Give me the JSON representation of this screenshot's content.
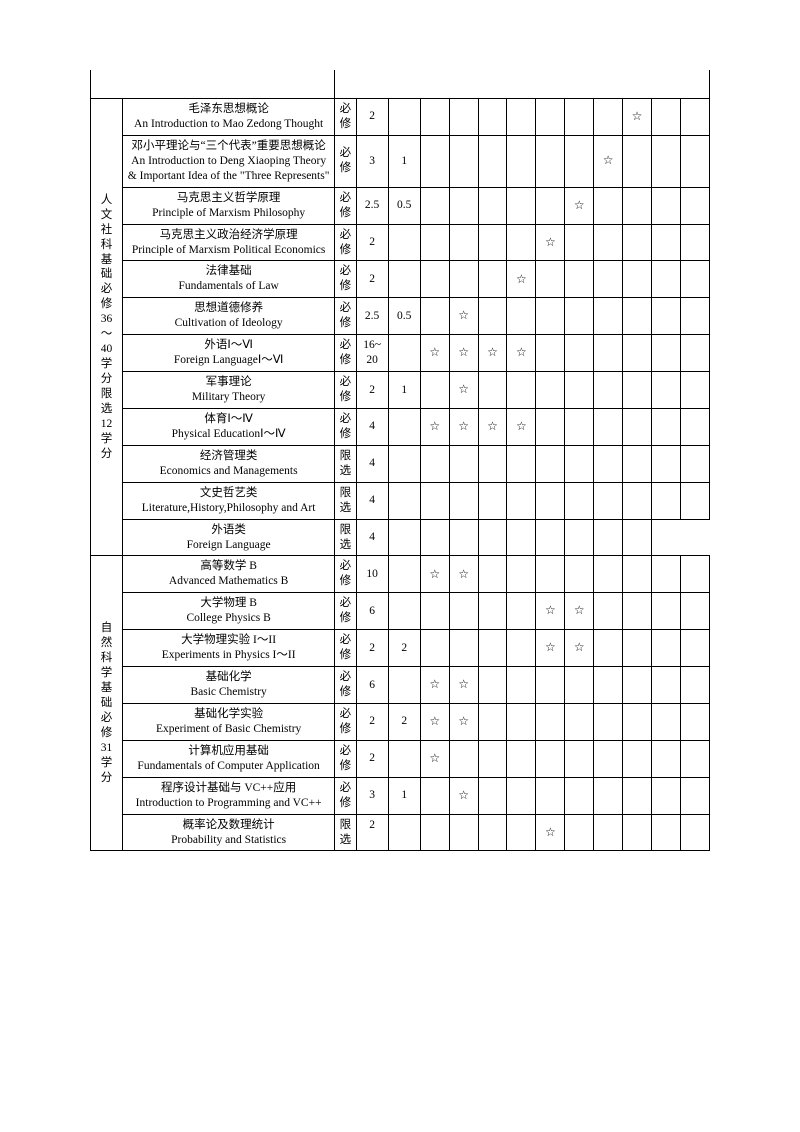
{
  "star": "☆",
  "categories": [
    {
      "label": "人文社科基础　必修36～40学分　限选12学分",
      "rowspan": 12
    },
    {
      "label": "自然科学基础　必修31学分",
      "rowspan": 8
    }
  ],
  "rows": [
    {
      "zh": "毛泽东思想概论",
      "en": "An Introduction to Mao Zedong Thought",
      "req": "必修",
      "credits": "2",
      "lab": "",
      "stars": [
        0,
        0,
        0,
        0,
        0,
        0,
        0,
        1,
        0,
        0
      ]
    },
    {
      "zh": "邓小平理论与“三个代表”重要思想概论",
      "en": "An Introduction to Deng Xiaoping Theory & Important Idea of the \"Three Represents\"",
      "req": "必修",
      "credits": "3",
      "lab": "1",
      "stars": [
        0,
        0,
        0,
        0,
        0,
        0,
        1,
        0,
        0,
        0
      ]
    },
    {
      "zh": "马克思主义哲学原理",
      "en": "Principle of Marxism Philosophy",
      "req": "必修",
      "credits": "2.5",
      "lab": "0.5",
      "stars": [
        0,
        0,
        0,
        0,
        0,
        1,
        0,
        0,
        0,
        0
      ]
    },
    {
      "zh": "马克思主义政治经济学原理",
      "en": "Principle of Marxism Political Economics",
      "req": "必修",
      "credits": "2",
      "lab": "",
      "stars": [
        0,
        0,
        0,
        0,
        1,
        0,
        0,
        0,
        0,
        0
      ]
    },
    {
      "zh": "法律基础",
      "en": "Fundamentals of Law",
      "req": "必修",
      "credits": "2",
      "lab": "",
      "stars": [
        0,
        0,
        0,
        1,
        0,
        0,
        0,
        0,
        0,
        0
      ]
    },
    {
      "zh": "思想道德修养",
      "en": "Cultivation of Ideology",
      "req": "必修",
      "credits": "2.5",
      "lab": "0.5",
      "stars": [
        0,
        1,
        0,
        0,
        0,
        0,
        0,
        0,
        0,
        0
      ]
    },
    {
      "zh": "外语Ⅰ～Ⅵ",
      "en": "Foreign LanguageⅠ～Ⅵ",
      "req": "必修",
      "credits": "16~20",
      "lab": "",
      "stars": [
        1,
        1,
        1,
        1,
        0,
        0,
        0,
        0,
        0,
        0
      ]
    },
    {
      "zh": "军事理论",
      "en": "Military Theory",
      "req": "必修",
      "credits": "2",
      "lab": "1",
      "stars": [
        0,
        1,
        0,
        0,
        0,
        0,
        0,
        0,
        0,
        0
      ]
    },
    {
      "zh": "体育Ⅰ～Ⅳ",
      "en": "Physical EducationⅠ～Ⅳ",
      "req": "必修",
      "credits": "4",
      "lab": "",
      "stars": [
        1,
        1,
        1,
        1,
        0,
        0,
        0,
        0,
        0,
        0
      ]
    },
    {
      "zh": "经济管理类",
      "en": "Economics and Managements",
      "req": "限选",
      "credits": "4",
      "lab": "",
      "stars": [
        0,
        0,
        0,
        0,
        0,
        0,
        0,
        0,
        0,
        0
      ]
    },
    {
      "zh": "文史哲艺类",
      "en": "Literature,History,Philosophy and Art",
      "req": "限选",
      "credits": "4",
      "lab": "",
      "stars": [
        0,
        0,
        0,
        0,
        0,
        0,
        0,
        0,
        0,
        0
      ]
    },
    {
      "zh": "外语类",
      "en": "Foreign Language",
      "req": "限选",
      "credits": "4",
      "lab": "",
      "short": true,
      "stars": [
        0,
        0,
        0,
        0,
        0,
        0,
        0,
        0
      ]
    },
    {
      "zh": "高等数学 B",
      "en": "Advanced Mathematics B",
      "req": "必修",
      "credits": "10",
      "lab": "",
      "stars": [
        1,
        1,
        0,
        0,
        0,
        0,
        0,
        0,
        0,
        0
      ]
    },
    {
      "zh": "大学物理 B",
      "en": "College Physics B",
      "req": "必修",
      "credits": "6",
      "lab": "",
      "stars": [
        0,
        0,
        0,
        0,
        1,
        1,
        0,
        0,
        0,
        0
      ]
    },
    {
      "zh": "大学物理实验 I～II",
      "en": "Experiments in Physics I～II",
      "req": "必修",
      "credits": "2",
      "lab": "2",
      "stars": [
        0,
        0,
        0,
        0,
        1,
        1,
        0,
        0,
        0,
        0
      ]
    },
    {
      "zh": "基础化学",
      "en": "Basic Chemistry",
      "req": "必修",
      "credits": "6",
      "lab": "",
      "stars": [
        1,
        1,
        0,
        0,
        0,
        0,
        0,
        0,
        0,
        0
      ]
    },
    {
      "zh": "基础化学实验",
      "en": "Experiment of Basic Chemistry",
      "req": "必修",
      "credits": "2",
      "lab": "2",
      "stars": [
        1,
        1,
        0,
        0,
        0,
        0,
        0,
        0,
        0,
        0
      ]
    },
    {
      "zh": "计算机应用基础",
      "en": "Fundamentals of Computer Application",
      "req": "必修",
      "credits": "2",
      "lab": "",
      "stars": [
        1,
        0,
        0,
        0,
        0,
        0,
        0,
        0,
        0,
        0
      ]
    },
    {
      "zh": "程序设计基础与 VC++应用",
      "en": "Introduction to Programming and VC++",
      "req": "必修",
      "credits": "3",
      "lab": "1",
      "stars": [
        0,
        1,
        0,
        0,
        0,
        0,
        0,
        0,
        0,
        0
      ]
    },
    {
      "zh": "概率论及数理统计",
      "en": "Probability and Statistics",
      "req": "限选",
      "credits": "2",
      "lab": "",
      "reqBottom": true,
      "stars": [
        0,
        0,
        0,
        0,
        1,
        0,
        0,
        0,
        0,
        0
      ]
    }
  ]
}
